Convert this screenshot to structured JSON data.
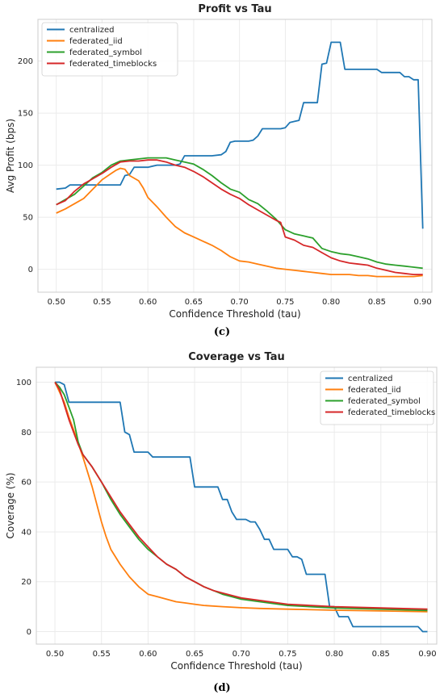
{
  "chart_data": [
    {
      "type": "line",
      "title": "Profit vs Tau",
      "xlabel": "Confidence Threshold (tau)",
      "ylabel": "Avg Profit (bps)",
      "xlim": [
        0.48,
        0.91
      ],
      "ylim": [
        -22,
        240
      ],
      "xticks": [
        0.5,
        0.55,
        0.6,
        0.65,
        0.7,
        0.75,
        0.8,
        0.85,
        0.9
      ],
      "xtick_labels": [
        "0.50",
        "0.55",
        "0.60",
        "0.65",
        "0.70",
        "0.75",
        "0.80",
        "0.85",
        "0.90"
      ],
      "yticks": [
        0,
        50,
        100,
        150,
        200
      ],
      "ytick_labels": [
        "0",
        "50",
        "100",
        "150",
        "200"
      ],
      "grid": true,
      "legend": "top-left",
      "caption": "(c)",
      "series": [
        {
          "name": "centralized",
          "color": "#1f77b4",
          "x": [
            0.5,
            0.51,
            0.515,
            0.52,
            0.53,
            0.54,
            0.55,
            0.56,
            0.57,
            0.575,
            0.58,
            0.585,
            0.59,
            0.595,
            0.6,
            0.61,
            0.62,
            0.63,
            0.635,
            0.64,
            0.645,
            0.65,
            0.66,
            0.67,
            0.68,
            0.685,
            0.69,
            0.695,
            0.7,
            0.71,
            0.715,
            0.72,
            0.725,
            0.73,
            0.74,
            0.745,
            0.75,
            0.755,
            0.76,
            0.765,
            0.77,
            0.775,
            0.78,
            0.785,
            0.79,
            0.795,
            0.8,
            0.805,
            0.81,
            0.815,
            0.82,
            0.83,
            0.84,
            0.845,
            0.85,
            0.855,
            0.86,
            0.865,
            0.87,
            0.875,
            0.88,
            0.885,
            0.89,
            0.895,
            0.9
          ],
          "y": [
            77,
            78,
            81,
            81,
            81,
            81,
            81,
            81,
            81,
            90,
            91,
            98,
            98,
            98,
            98,
            100,
            100,
            100,
            101,
            109,
            109,
            109,
            109,
            109,
            110,
            113,
            122,
            123,
            123,
            123,
            124,
            128,
            135,
            135,
            135,
            135,
            136,
            141,
            142,
            143,
            160,
            160,
            160,
            160,
            197,
            198,
            218,
            218,
            218,
            192,
            192,
            192,
            192,
            192,
            192,
            189,
            189,
            189,
            189,
            189,
            185,
            185,
            182,
            182,
            39
          ]
        },
        {
          "name": "federated_iid",
          "color": "#ff7f0e",
          "x": [
            0.5,
            0.51,
            0.52,
            0.53,
            0.54,
            0.55,
            0.56,
            0.565,
            0.57,
            0.575,
            0.58,
            0.59,
            0.595,
            0.6,
            0.61,
            0.62,
            0.63,
            0.64,
            0.65,
            0.66,
            0.67,
            0.68,
            0.69,
            0.695,
            0.7,
            0.71,
            0.72,
            0.73,
            0.74,
            0.75,
            0.76,
            0.77,
            0.78,
            0.79,
            0.8,
            0.81,
            0.82,
            0.83,
            0.84,
            0.85,
            0.86,
            0.87,
            0.88,
            0.89,
            0.9
          ],
          "y": [
            54,
            58,
            63,
            68,
            77,
            86,
            92,
            95,
            97,
            96,
            90,
            85,
            78,
            69,
            60,
            50,
            41,
            35,
            31,
            27,
            23,
            18,
            12,
            10,
            8,
            7,
            5,
            3,
            1,
            0,
            -1,
            -2,
            -3,
            -4,
            -5,
            -5,
            -5,
            -6,
            -6,
            -7,
            -7,
            -7,
            -7,
            -7,
            -6
          ]
        },
        {
          "name": "federated_symbol",
          "color": "#2ca02c",
          "x": [
            0.5,
            0.51,
            0.52,
            0.53,
            0.54,
            0.55,
            0.56,
            0.57,
            0.58,
            0.59,
            0.6,
            0.61,
            0.62,
            0.63,
            0.64,
            0.65,
            0.66,
            0.67,
            0.68,
            0.69,
            0.7,
            0.71,
            0.72,
            0.73,
            0.74,
            0.75,
            0.76,
            0.77,
            0.78,
            0.79,
            0.8,
            0.81,
            0.82,
            0.83,
            0.84,
            0.85,
            0.86,
            0.87,
            0.88,
            0.89,
            0.9
          ],
          "y": [
            62,
            67,
            72,
            80,
            88,
            93,
            100,
            104,
            105,
            106,
            107,
            107,
            107,
            105,
            103,
            101,
            96,
            90,
            83,
            77,
            74,
            67,
            63,
            56,
            48,
            38,
            34,
            32,
            30,
            20,
            17,
            15,
            14,
            12,
            10,
            7,
            5,
            4,
            3,
            2,
            1
          ]
        },
        {
          "name": "federated_timeblocks",
          "color": "#d62728",
          "x": [
            0.5,
            0.51,
            0.52,
            0.53,
            0.54,
            0.55,
            0.56,
            0.57,
            0.58,
            0.59,
            0.6,
            0.61,
            0.62,
            0.63,
            0.64,
            0.65,
            0.66,
            0.67,
            0.68,
            0.69,
            0.7,
            0.71,
            0.72,
            0.73,
            0.74,
            0.745,
            0.75,
            0.76,
            0.77,
            0.78,
            0.79,
            0.8,
            0.81,
            0.82,
            0.83,
            0.84,
            0.85,
            0.86,
            0.87,
            0.88,
            0.89,
            0.9
          ],
          "y": [
            62,
            66,
            75,
            82,
            87,
            92,
            98,
            103,
            104,
            104,
            105,
            105,
            103,
            100,
            98,
            94,
            89,
            83,
            77,
            72,
            68,
            62,
            57,
            52,
            47,
            45,
            31,
            28,
            23,
            21,
            16,
            11,
            8,
            6,
            5,
            4,
            1,
            -1,
            -3,
            -4,
            -5,
            -5
          ]
        }
      ]
    },
    {
      "type": "line",
      "title": "Coverage vs Tau",
      "xlabel": "Confidence Threshold (tau)",
      "ylabel": "Coverage (%)",
      "xlim": [
        0.48,
        0.91
      ],
      "ylim": [
        -5,
        106
      ],
      "xticks": [
        0.5,
        0.55,
        0.6,
        0.65,
        0.7,
        0.75,
        0.8,
        0.85,
        0.9
      ],
      "xtick_labels": [
        "0.50",
        "0.55",
        "0.60",
        "0.65",
        "0.70",
        "0.75",
        "0.80",
        "0.85",
        "0.90"
      ],
      "yticks": [
        0,
        20,
        40,
        60,
        80,
        100
      ],
      "ytick_labels": [
        "0",
        "20",
        "40",
        "60",
        "80",
        "100"
      ],
      "grid": true,
      "legend": "top-right",
      "caption": "(d)",
      "series": [
        {
          "name": "centralized",
          "color": "#1f77b4",
          "x": [
            0.5,
            0.505,
            0.51,
            0.515,
            0.52,
            0.53,
            0.54,
            0.55,
            0.56,
            0.57,
            0.575,
            0.58,
            0.585,
            0.59,
            0.6,
            0.605,
            0.61,
            0.62,
            0.63,
            0.64,
            0.645,
            0.65,
            0.66,
            0.67,
            0.675,
            0.68,
            0.685,
            0.69,
            0.695,
            0.7,
            0.705,
            0.71,
            0.715,
            0.72,
            0.725,
            0.73,
            0.735,
            0.74,
            0.745,
            0.75,
            0.755,
            0.76,
            0.765,
            0.77,
            0.775,
            0.78,
            0.785,
            0.79,
            0.795,
            0.8,
            0.805,
            0.81,
            0.815,
            0.82,
            0.83,
            0.84,
            0.85,
            0.86,
            0.87,
            0.875,
            0.88,
            0.885,
            0.89,
            0.895,
            0.9
          ],
          "y": [
            100,
            100,
            99,
            92,
            92,
            92,
            92,
            92,
            92,
            92,
            80,
            79,
            72,
            72,
            72,
            70,
            70,
            70,
            70,
            70,
            70,
            58,
            58,
            58,
            58,
            53,
            53,
            48,
            45,
            45,
            45,
            44,
            44,
            41,
            37,
            37,
            33,
            33,
            33,
            33,
            30,
            30,
            29,
            23,
            23,
            23,
            23,
            23,
            10,
            10,
            6,
            6,
            6,
            2,
            2,
            2,
            2,
            2,
            2,
            2,
            2,
            2,
            2,
            0,
            0
          ]
        },
        {
          "name": "federated_iid",
          "color": "#ff7f0e",
          "x": [
            0.5,
            0.51,
            0.515,
            0.52,
            0.53,
            0.54,
            0.55,
            0.555,
            0.56,
            0.57,
            0.58,
            0.59,
            0.6,
            0.61,
            0.62,
            0.63,
            0.64,
            0.65,
            0.66,
            0.68,
            0.7,
            0.72,
            0.75,
            0.8,
            0.85,
            0.9
          ],
          "y": [
            100,
            92,
            86,
            81,
            70,
            58,
            44,
            38,
            33,
            27,
            22,
            18,
            15,
            14,
            13,
            12,
            11.5,
            11,
            10.5,
            10,
            9.6,
            9.3,
            9.0,
            8.6,
            8.3,
            8.0
          ]
        },
        {
          "name": "federated_symbol",
          "color": "#2ca02c",
          "x": [
            0.5,
            0.505,
            0.51,
            0.515,
            0.52,
            0.525,
            0.53,
            0.54,
            0.55,
            0.56,
            0.57,
            0.58,
            0.59,
            0.6,
            0.61,
            0.62,
            0.63,
            0.64,
            0.65,
            0.66,
            0.67,
            0.68,
            0.69,
            0.7,
            0.72,
            0.75,
            0.8,
            0.85,
            0.9
          ],
          "y": [
            100,
            98,
            95,
            90,
            85,
            76,
            71,
            66,
            60,
            53,
            47,
            42,
            37,
            33,
            30,
            27,
            25,
            22,
            20,
            18,
            16.5,
            15,
            14,
            13,
            12,
            10.5,
            9.5,
            9.0,
            8.5
          ]
        },
        {
          "name": "federated_timeblocks",
          "color": "#d62728",
          "x": [
            0.5,
            0.505,
            0.51,
            0.515,
            0.52,
            0.525,
            0.53,
            0.54,
            0.55,
            0.56,
            0.57,
            0.58,
            0.59,
            0.6,
            0.61,
            0.62,
            0.63,
            0.64,
            0.65,
            0.66,
            0.67,
            0.68,
            0.69,
            0.7,
            0.72,
            0.75,
            0.8,
            0.85,
            0.9
          ],
          "y": [
            100,
            97,
            91,
            85,
            80,
            75,
            71,
            66,
            60,
            54,
            48,
            43,
            38,
            34,
            30,
            27,
            25,
            22,
            20,
            18,
            16.5,
            15.5,
            14.5,
            13.5,
            12.5,
            11,
            10,
            9.5,
            9.0
          ]
        }
      ]
    }
  ]
}
